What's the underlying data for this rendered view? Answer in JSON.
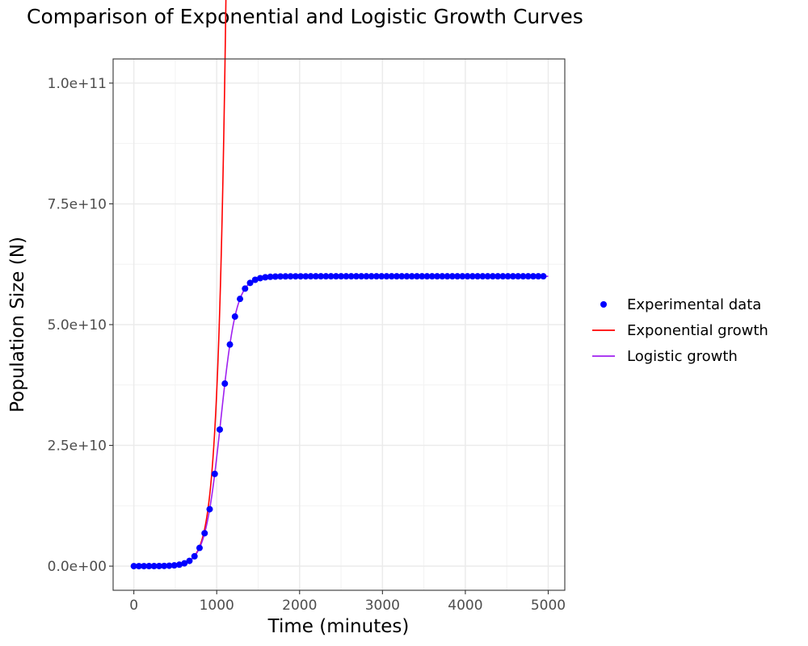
{
  "chart_data": {
    "type": "line",
    "title": "Comparison of Exponential and Logistic Growth Curves",
    "xlabel": "Time (minutes)",
    "ylabel": "Population Size (N)",
    "xlim": [
      -250,
      5200
    ],
    "ylim": [
      -5000000000,
      105000000000
    ],
    "x_ticks": [
      0,
      1000,
      2000,
      3000,
      4000,
      5000
    ],
    "x_tick_labels": [
      "0",
      "1000",
      "2000",
      "3000",
      "4000",
      "5000"
    ],
    "y_ticks": [
      0,
      25000000000,
      50000000000,
      75000000000,
      100000000000
    ],
    "y_tick_labels": [
      "0.0e+00",
      "2.5e+10",
      "5.0e+10",
      "7.5e+10",
      "1.0e+11"
    ],
    "grid": true,
    "legend_position": "right",
    "series": [
      {
        "name": "Experimental data",
        "kind": "points",
        "color": "#0000ff",
        "model": {
          "form": "logistic",
          "K": 60000000000,
          "N0": 900000,
          "r": 0.0106
        },
        "x_start": 0,
        "x_end": 5000,
        "x_step": 61
      },
      {
        "name": "Exponential growth",
        "kind": "line",
        "color": "#ff0000",
        "model": {
          "form": "exponential",
          "N0": 900000,
          "r": 0.0106
        },
        "x_start": 0,
        "x_end": 1840
      },
      {
        "name": "Logistic growth",
        "kind": "line",
        "color": "#a020f0",
        "model": {
          "form": "logistic",
          "K": 60000000000,
          "N0": 900000,
          "r": 0.0106
        },
        "x_start": 0,
        "x_end": 5000
      }
    ]
  }
}
